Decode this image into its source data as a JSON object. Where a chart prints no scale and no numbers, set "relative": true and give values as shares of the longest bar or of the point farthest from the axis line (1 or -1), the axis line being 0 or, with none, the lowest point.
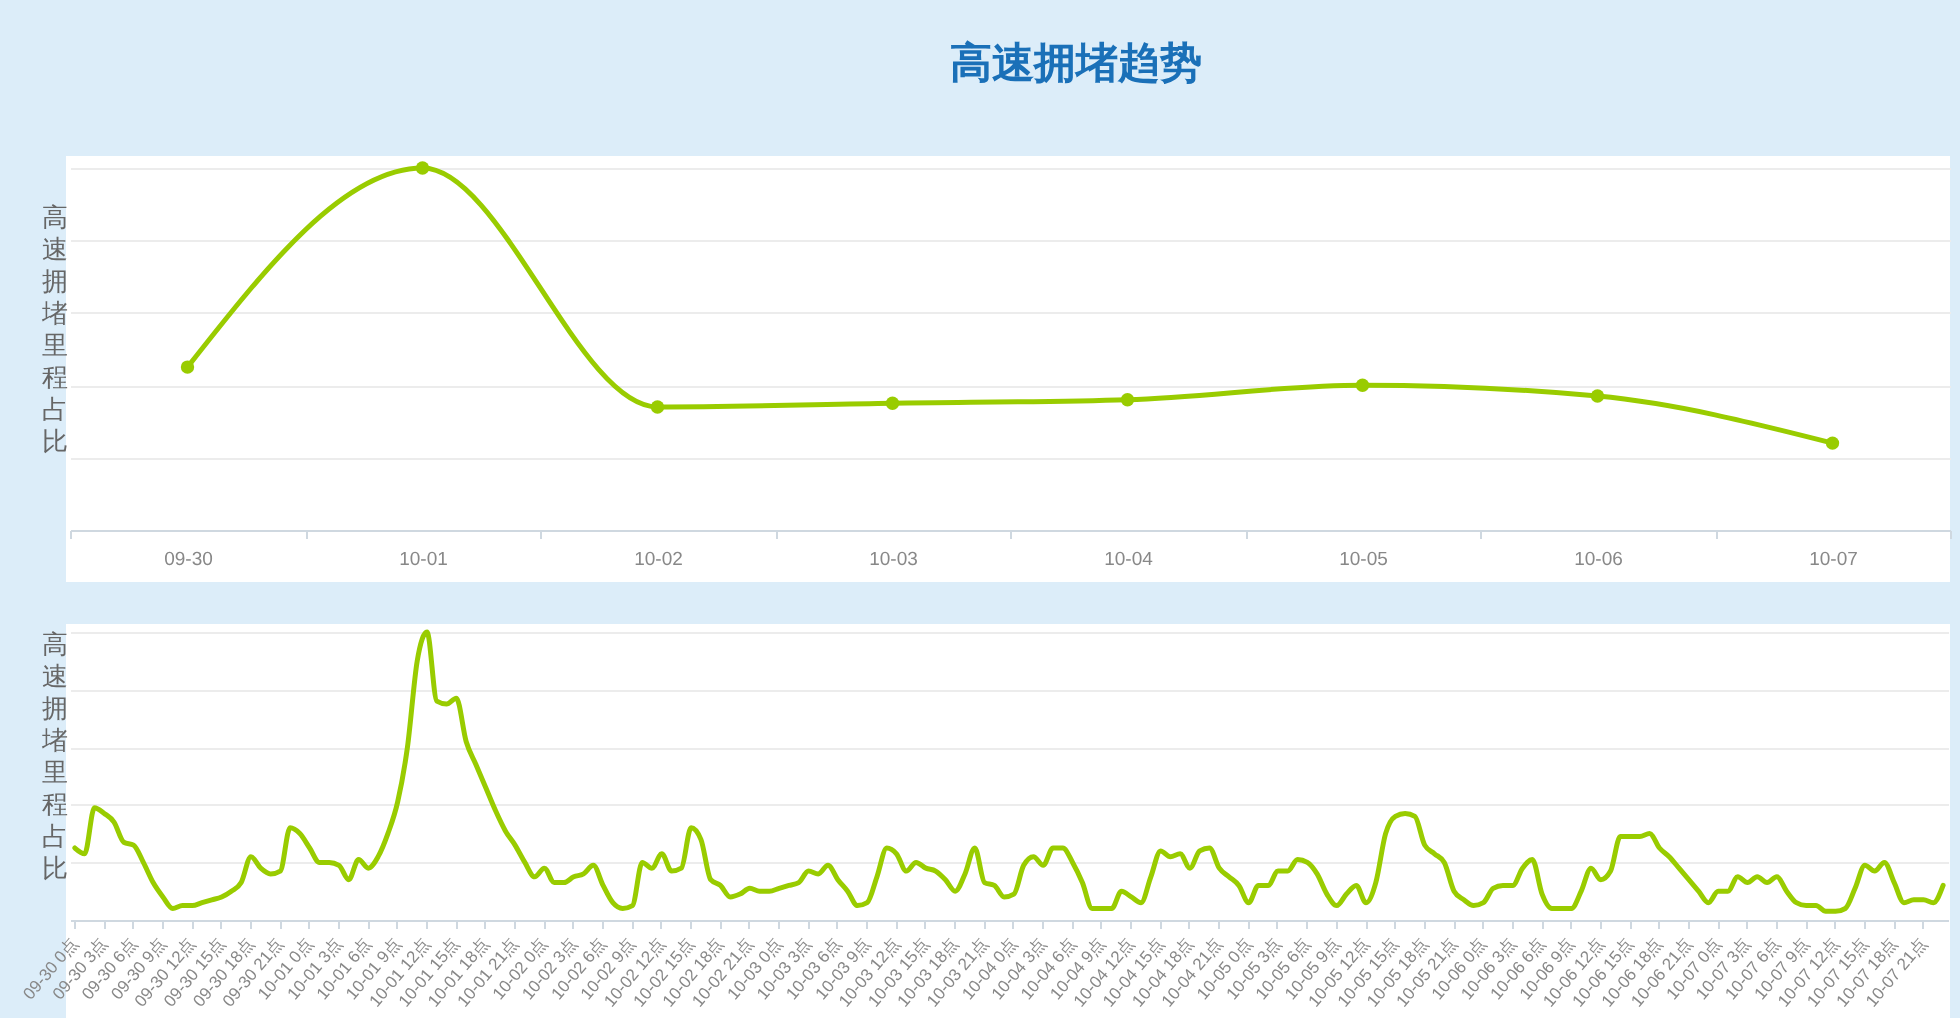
{
  "chart_data": [
    {
      "type": "line",
      "title": "高速拥堵趋势",
      "ylabel": "高速拥堵里程占比",
      "relative": true,
      "grid": "y",
      "marker": "circle",
      "categories": [
        "09-30",
        "10-01",
        "10-02",
        "10-03",
        "10-04",
        "10-05",
        "10-06",
        "10-07"
      ],
      "series": [
        {
          "color": "#99cc00",
          "values": [
            0.45,
            1,
            0.34,
            0.35,
            0.36,
            0.4,
            0.37,
            0.24
          ]
        }
      ]
    },
    {
      "type": "line",
      "ylabel": "高速拥堵里程占比",
      "relative": true,
      "grid": "y",
      "marker": "none",
      "categories": [
        "09-30 0点",
        null,
        null,
        "09-30 3点",
        null,
        null,
        "09-30 6点",
        null,
        null,
        "09-30 9点",
        null,
        null,
        "09-30 12点",
        null,
        null,
        "09-30 15点",
        null,
        null,
        "09-30 18点",
        null,
        null,
        "09-30 21点",
        null,
        null,
        "10-01 0点",
        null,
        null,
        "10-01 3点",
        null,
        null,
        "10-01 6点",
        null,
        null,
        "10-01 9点",
        null,
        null,
        "10-01 12点",
        null,
        null,
        "10-01 15点",
        null,
        null,
        "10-01 18点",
        null,
        null,
        "10-01 21点",
        null,
        null,
        "10-02 0点",
        null,
        null,
        "10-02 3点",
        null,
        null,
        "10-02 6点",
        null,
        null,
        "10-02 9点",
        null,
        null,
        "10-02 12点",
        null,
        null,
        "10-02 15点",
        null,
        null,
        "10-02 18点",
        null,
        null,
        "10-02 21点",
        null,
        null,
        "10-03 0点",
        null,
        null,
        "10-03 3点",
        null,
        null,
        "10-03 6点",
        null,
        null,
        "10-03 9点",
        null,
        null,
        "10-03 12点",
        null,
        null,
        "10-03 15点",
        null,
        null,
        "10-03 18点",
        null,
        null,
        "10-03 21点",
        null,
        null,
        "10-04 0点",
        null,
        null,
        "10-04 3点",
        null,
        null,
        "10-04 6点",
        null,
        null,
        "10-04 9点",
        null,
        null,
        "10-04 12点",
        null,
        null,
        "10-04 15点",
        null,
        null,
        "10-04 18点",
        null,
        null,
        "10-04 21点",
        null,
        null,
        "10-05 0点",
        null,
        null,
        "10-05 3点",
        null,
        null,
        "10-05 6点",
        null,
        null,
        "10-05 9点",
        null,
        null,
        "10-05 12点",
        null,
        null,
        "10-05 15点",
        null,
        null,
        "10-05 18点",
        null,
        null,
        "10-05 21点",
        null,
        null,
        "10-06 0点",
        null,
        null,
        "10-06 3点",
        null,
        null,
        "10-06 6点",
        null,
        null,
        "10-06 9点",
        null,
        null,
        "10-06 12点",
        null,
        null,
        "10-06 15点",
        null,
        null,
        "10-06 18点",
        null,
        null,
        "10-06 21点",
        null,
        null,
        "10-07 0点",
        null,
        null,
        "10-07 3点",
        null,
        null,
        "10-07 6点",
        null,
        null,
        "10-07 9点",
        null,
        null,
        "10-07 12点",
        null,
        null,
        "10-07 15点",
        null,
        null,
        "10-07 18点",
        null,
        null,
        "10-07 21点",
        null,
        null
      ],
      "series": [
        {
          "color": "#99cc00",
          "values": [
            0.25,
            0.23,
            0.39,
            0.37,
            0.34,
            0.27,
            0.26,
            0.2,
            0.13,
            0.08,
            0.04,
            0.05,
            0.05,
            0.06,
            0.07,
            0.08,
            0.1,
            0.13,
            0.22,
            0.18,
            0.16,
            0.17,
            0.32,
            0.3,
            0.25,
            0.2,
            0.2,
            0.19,
            0.14,
            0.21,
            0.18,
            0.22,
            0.3,
            0.41,
            0.6,
            0.9,
            1,
            0.76,
            0.75,
            0.77,
            0.62,
            0.54,
            0.46,
            0.38,
            0.31,
            0.26,
            0.2,
            0.15,
            0.18,
            0.13,
            0.13,
            0.15,
            0.16,
            0.19,
            0.12,
            0.06,
            0.04,
            0.05,
            0.2,
            0.18,
            0.23,
            0.17,
            0.18,
            0.32,
            0.28,
            0.14,
            0.12,
            0.08,
            0.09,
            0.11,
            0.1,
            0.1,
            0.11,
            0.12,
            0.13,
            0.17,
            0.16,
            0.19,
            0.14,
            0.1,
            0.05,
            0.06,
            0.15,
            0.25,
            0.23,
            0.17,
            0.2,
            0.18,
            0.17,
            0.14,
            0.1,
            0.16,
            0.25,
            0.13,
            0.12,
            0.08,
            0.09,
            0.19,
            0.22,
            0.19,
            0.25,
            0.25,
            0.2,
            0.13,
            0.04,
            0.04,
            0.04,
            0.1,
            0.08,
            0.06,
            0.15,
            0.24,
            0.22,
            0.23,
            0.18,
            0.24,
            0.25,
            0.18,
            0.15,
            0.12,
            0.06,
            0.12,
            0.12,
            0.17,
            0.17,
            0.21,
            0.2,
            0.16,
            0.09,
            0.05,
            0.09,
            0.12,
            0.06,
            0.13,
            0.3,
            0.36,
            0.37,
            0.36,
            0.26,
            0.23,
            0.2,
            0.1,
            0.07,
            0.05,
            0.06,
            0.11,
            0.12,
            0.12,
            0.18,
            0.21,
            0.09,
            0.04,
            0.04,
            0.04,
            0.1,
            0.18,
            0.14,
            0.17,
            0.29,
            0.29,
            0.29,
            0.3,
            0.25,
            0.22,
            0.18,
            0.14,
            0.1,
            0.06,
            0.1,
            0.1,
            0.15,
            0.13,
            0.15,
            0.13,
            0.15,
            0.1,
            0.06,
            0.05,
            0.05,
            0.03,
            0.03,
            0.04,
            0.11,
            0.19,
            0.17,
            0.2,
            0.13,
            0.06,
            0.07,
            0.07,
            0.06,
            0.12
          ]
        }
      ]
    }
  ]
}
